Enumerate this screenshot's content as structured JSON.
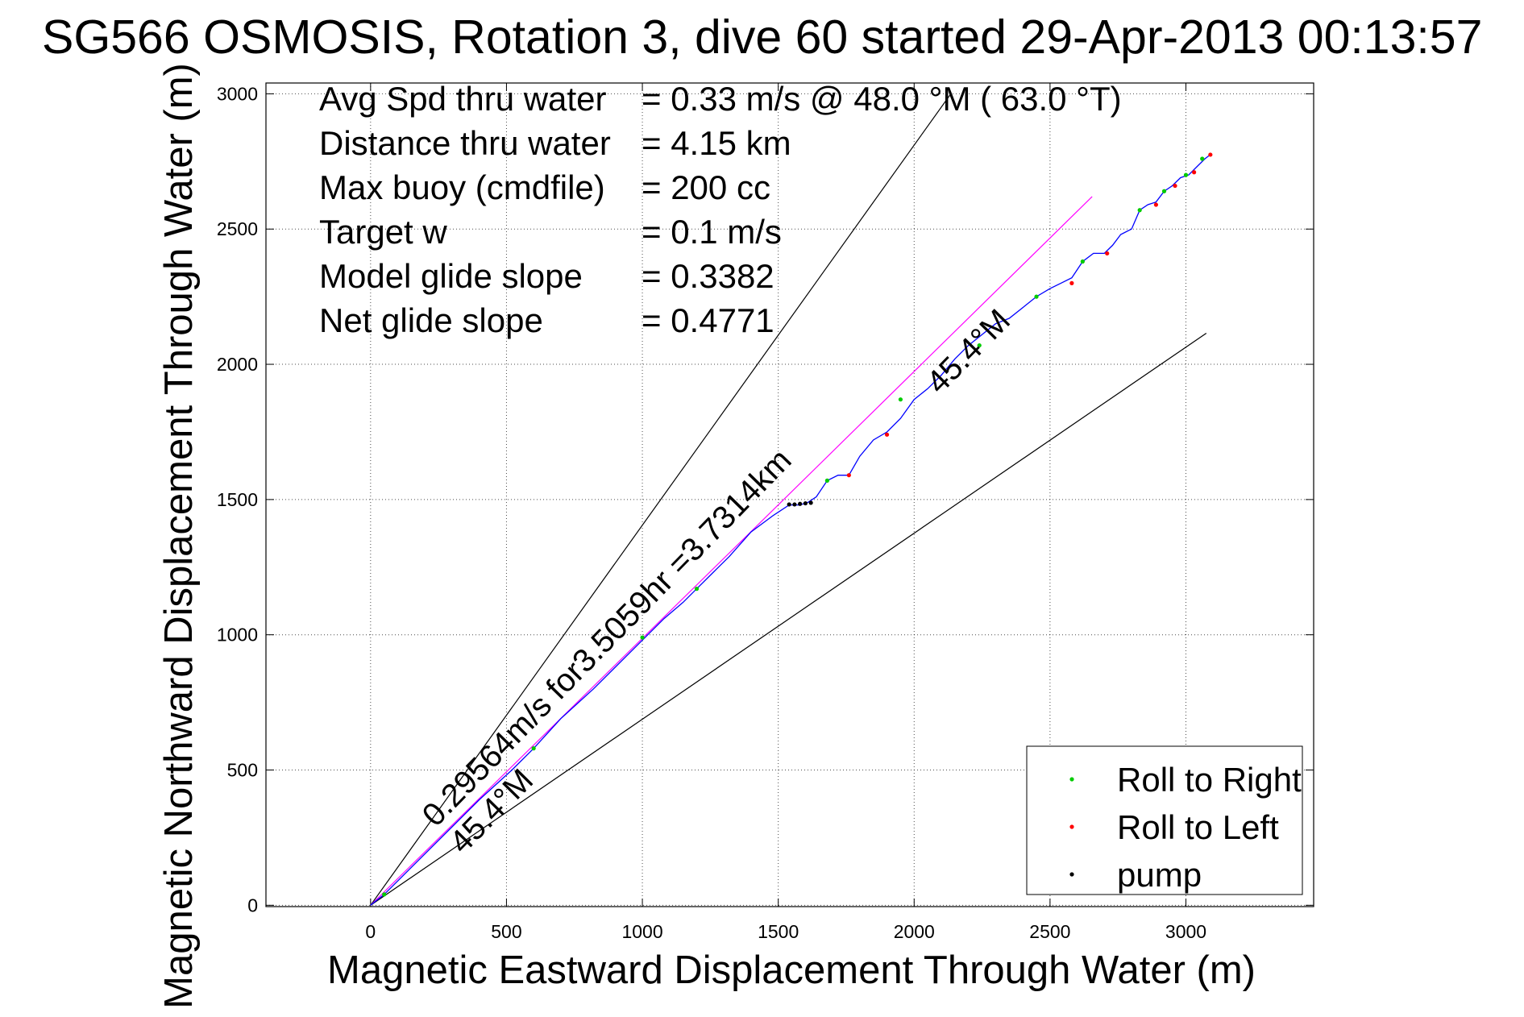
{
  "chart_data": {
    "type": "line",
    "title": "SG566 OSMOSIS, Rotation 3, dive 60 started 29-Apr-2013 00:13:57",
    "xlabel": "Magnetic Eastward Displacement Through Water (m)",
    "ylabel": "Magnetic Northward Displacement Through Water (m)",
    "xlim": [
      -385,
      3470
    ],
    "ylim": [
      -5,
      3040
    ],
    "xticks": [
      0,
      500,
      1000,
      1500,
      2000,
      2500,
      3000
    ],
    "yticks": [
      0,
      500,
      1000,
      1500,
      2000,
      2500,
      3000
    ],
    "grid": true,
    "grid_style": "dotted",
    "legend_position": "bottom-right",
    "info_lines": [
      {
        "label": "Avg Spd thru water",
        "value": "=  0.33 m/s @  48.0 °M ( 63.0 °T)"
      },
      {
        "label": "Distance thru water",
        "value": "=  4.15 km"
      },
      {
        "label": "Max buoy (cmdfile)",
        "value": "= 200 cc"
      },
      {
        "label": "Target w",
        "value": "= 0.1 m/s"
      },
      {
        "label": "Model glide slope",
        "value": "= 0.3382"
      },
      {
        "label": "Net glide slope",
        "value": "= 0.4771"
      }
    ],
    "annotations": [
      {
        "text": "0.29564m/s for3.5059hr =3.7314km",
        "x": 240,
        "y": 285,
        "rotation_deg": -45.7
      },
      {
        "text": "45.4°M",
        "x": 340,
        "y": 185,
        "rotation_deg": -45.4
      },
      {
        "text": "45.4°M",
        "x": 2095,
        "y": 1885,
        "rotation_deg": -45.4
      }
    ],
    "reference_lines": [
      {
        "name": "upper bound",
        "color": "#000000",
        "x": [
          0,
          2135
        ],
        "y": [
          0,
          3000
        ]
      },
      {
        "name": "lower bound",
        "color": "#000000",
        "x": [
          0,
          3075
        ],
        "y": [
          0,
          2115
        ]
      },
      {
        "name": "net track",
        "color": "#ff00ff",
        "x": [
          0,
          2655
        ],
        "y": [
          0,
          2620
        ]
      }
    ],
    "series": [
      {
        "color": "#0000ff",
        "x": [
          0,
          50,
          120,
          200,
          300,
          400,
          520,
          600,
          700,
          820,
          950,
          1080,
          1150,
          1200,
          1260,
          1320,
          1400,
          1480,
          1540,
          1580,
          1610,
          1640,
          1680,
          1720,
          1760,
          1800,
          1850,
          1900,
          1950,
          2000,
          2050,
          2100,
          2150,
          2200,
          2250,
          2300,
          2350,
          2400,
          2450,
          2500,
          2540,
          2580,
          2620,
          2660,
          2700,
          2730,
          2760,
          2800,
          2830,
          2860,
          2890,
          2920,
          2950,
          2980,
          3010,
          3040,
          3070,
          3090
        ],
        "y": [
          0,
          40,
          110,
          190,
          290,
          390,
          500,
          580,
          690,
          800,
          930,
          1060,
          1120,
          1170,
          1230,
          1290,
          1380,
          1440,
          1480,
          1480,
          1490,
          1510,
          1570,
          1590,
          1590,
          1660,
          1720,
          1750,
          1800,
          1870,
          1910,
          1960,
          2020,
          2070,
          2110,
          2150,
          2170,
          2210,
          2250,
          2280,
          2300,
          2320,
          2380,
          2410,
          2410,
          2440,
          2480,
          2500,
          2570,
          2590,
          2600,
          2640,
          2660,
          2690,
          2700,
          2730,
          2760,
          2775
        ]
      }
    ],
    "markers": {
      "roll_right": {
        "color": "#00cc00",
        "x": [
          50,
          600,
          1000,
          1200,
          1680,
          1950,
          2240,
          2450,
          2620,
          2830,
          2920,
          3000,
          3060
        ],
        "y": [
          40,
          580,
          990,
          1170,
          1570,
          1870,
          2070,
          2250,
          2380,
          2570,
          2640,
          2700,
          2760
        ]
      },
      "roll_left": {
        "color": "#ff0000",
        "x": [
          1760,
          1900,
          2580,
          2710,
          2890,
          2960,
          3030,
          3090
        ],
        "y": [
          1590,
          1740,
          2300,
          2410,
          2590,
          2660,
          2710,
          2775
        ]
      },
      "pump": {
        "color": "#000000",
        "x": [
          1540,
          1560,
          1580,
          1600,
          1620
        ],
        "y": [
          1482,
          1482,
          1484,
          1486,
          1488
        ]
      }
    },
    "legend": [
      {
        "label": "Roll to Right",
        "color": "#00cc00"
      },
      {
        "label": "Roll to Left",
        "color": "#ff0000"
      },
      {
        "label": "pump",
        "color": "#000000"
      }
    ]
  }
}
